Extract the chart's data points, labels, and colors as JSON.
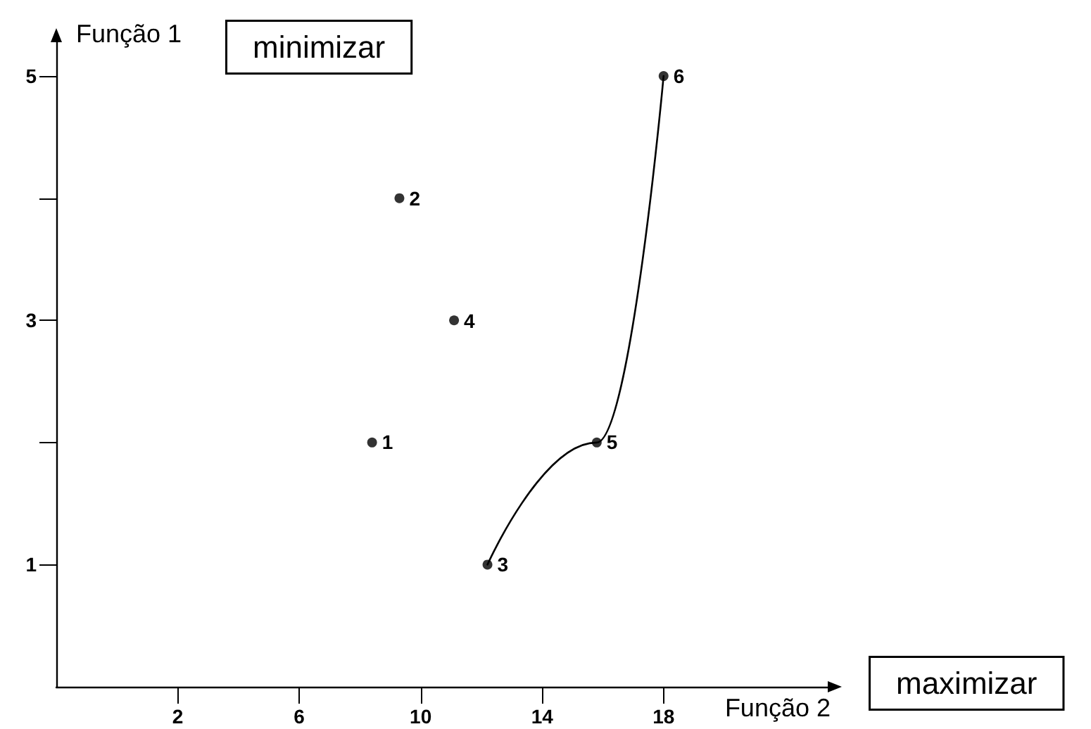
{
  "chart_data": {
    "type": "scatter",
    "xlabel": "Função 2",
    "ylabel": "Função 1",
    "annotations": [
      "minimizar",
      "maximizar",
      {
        "text": "1",
        "x": 8.4,
        "y": 2
      },
      {
        "text": "2",
        "x": 9.3,
        "y": 4
      },
      {
        "text": "3",
        "x": 12.2,
        "y": 1
      },
      {
        "text": "4",
        "x": 11.1,
        "y": 3
      },
      {
        "text": "5",
        "x": 15.8,
        "y": 2
      },
      {
        "text": "6",
        "x": 18.0,
        "y": 5
      }
    ],
    "series": [
      {
        "color": "#000000",
        "marker": "circle",
        "x": [
          8.4,
          9.3,
          12.2,
          11.1,
          15.8,
          18.0
        ],
        "values": [
          2,
          4,
          1,
          3,
          2,
          5
        ]
      },
      {
        "type": "line",
        "color": "#000000",
        "marker": "none",
        "line_style": "solid",
        "x": [
          12.2,
          15.8,
          18.0
        ],
        "values": [
          1,
          2,
          5
        ]
      }
    ],
    "xlim": [
      -2,
      23.5
    ],
    "xticks": [
      2,
      6,
      10,
      14,
      18
    ],
    "ylim": [
      0,
      5.3
    ],
    "yticks": [
      {
        "value": 1,
        "label": "1"
      },
      {
        "value": 2,
        "label": null
      },
      {
        "value": 3,
        "label": "3"
      },
      {
        "value": 4,
        "label": null
      },
      {
        "value": 5,
        "label": "5"
      }
    ]
  }
}
